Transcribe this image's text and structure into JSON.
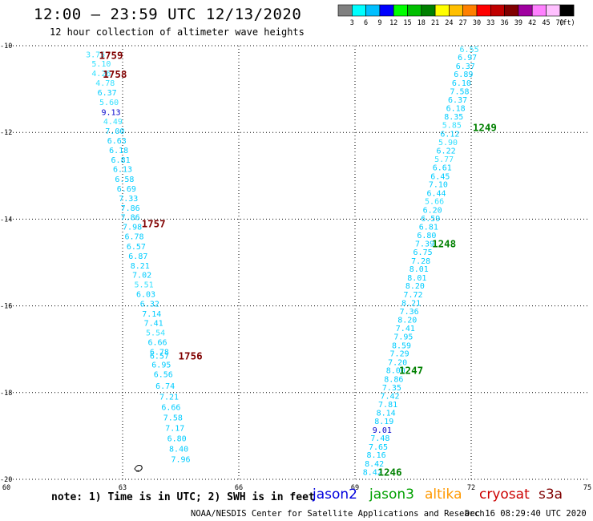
{
  "header": {
    "title": "12:00 – 23:59 UTC 12/13/2020",
    "subtitle": "12 hour collection of altimeter wave heights"
  },
  "colorbar": {
    "labels": [
      "3",
      "6",
      "9",
      "12",
      "15",
      "18",
      "21",
      "24",
      "27",
      "30",
      "33",
      "36",
      "39",
      "42",
      "45",
      "70",
      "(ft)"
    ],
    "colors": [
      "#808080",
      "#00ffff",
      "#00bfff",
      "#0000ff",
      "#00ff00",
      "#00bf00",
      "#008000",
      "#ffff00",
      "#ffbf00",
      "#ff8000",
      "#ff0000",
      "#c00000",
      "#800000",
      "#a000a0",
      "#ff80ff",
      "#ffc0ff",
      "#000000"
    ]
  },
  "footer": {
    "note": "note:  1) Time is in UTC;  2) SWH is in feet",
    "source": "NOAA/NESDIS Center for Satellite Applications and Research",
    "timestamp": "Dec 16 08:29:40 UTC 2020"
  },
  "missions": [
    {
      "name": "jason2",
      "color": "#0000dd"
    },
    {
      "name": "jason3",
      "color": "#00a000"
    },
    {
      "name": "altika",
      "color": "#ff9900"
    },
    {
      "name": "cryosat",
      "color": "#cc0000"
    },
    {
      "name": "s3a",
      "color": "#800000"
    }
  ],
  "chart_data": {
    "type": "scatter",
    "title": "12:00 – 23:59 UTC 12/13/2020",
    "xlim": [
      60,
      75
    ],
    "ylim": [
      -20,
      -10
    ],
    "xticks": [
      60,
      63,
      66,
      69,
      72,
      75
    ],
    "yticks": [
      -10,
      -12,
      -14,
      -16,
      -18,
      -20
    ],
    "grid": true,
    "color_cyan": "#00ccff",
    "color_light": "#33e0ff",
    "color_blue": "#0000cc",
    "series": [
      {
        "name": "s3a",
        "color": "#800000",
        "points": [
          {
            "x": 62.3,
            "y": -10.2,
            "v": "3.75",
            "c": "light"
          },
          {
            "x": 62.45,
            "y": -10.42,
            "v": "5.10",
            "c": "light"
          },
          {
            "x": 62.45,
            "y": -10.64,
            "v": "4.26",
            "c": "light"
          },
          {
            "x": 62.55,
            "y": -10.86,
            "v": "4.78",
            "c": "light"
          },
          {
            "x": 62.6,
            "y": -11.08,
            "v": "6.37",
            "c": "cyan"
          },
          {
            "x": 62.65,
            "y": -11.3,
            "v": "5.60",
            "c": "light"
          },
          {
            "x": 62.7,
            "y": -11.53,
            "v": "9.13",
            "c": "blue"
          },
          {
            "x": 62.75,
            "y": -11.75,
            "v": "4.49",
            "c": "light"
          },
          {
            "x": 62.8,
            "y": -11.97,
            "v": "7.00",
            "c": "cyan"
          },
          {
            "x": 62.85,
            "y": -12.19,
            "v": "6.63",
            "c": "cyan"
          },
          {
            "x": 62.9,
            "y": -12.41,
            "v": "6.18",
            "c": "cyan"
          },
          {
            "x": 62.95,
            "y": -12.63,
            "v": "6.81",
            "c": "cyan"
          },
          {
            "x": 63.0,
            "y": -12.85,
            "v": "6.13",
            "c": "cyan"
          },
          {
            "x": 63.05,
            "y": -13.08,
            "v": "6.58",
            "c": "cyan"
          },
          {
            "x": 63.1,
            "y": -13.3,
            "v": "6.69",
            "c": "cyan"
          },
          {
            "x": 63.15,
            "y": -13.52,
            "v": "7.33",
            "c": "cyan"
          },
          {
            "x": 63.2,
            "y": -13.74,
            "v": "7.86",
            "c": "cyan"
          },
          {
            "x": 63.2,
            "y": -13.96,
            "v": "7.86",
            "c": "cyan"
          },
          {
            "x": 63.25,
            "y": -14.18,
            "v": "7.98",
            "c": "cyan"
          },
          {
            "x": 63.3,
            "y": -14.4,
            "v": "6.78",
            "c": "cyan"
          },
          {
            "x": 63.35,
            "y": -14.63,
            "v": "6.57",
            "c": "cyan"
          },
          {
            "x": 63.4,
            "y": -14.85,
            "v": "6.87",
            "c": "cyan"
          },
          {
            "x": 63.45,
            "y": -15.07,
            "v": "8.21",
            "c": "cyan"
          },
          {
            "x": 63.5,
            "y": -15.29,
            "v": "7.02",
            "c": "cyan"
          },
          {
            "x": 63.55,
            "y": -15.51,
            "v": "5.51",
            "c": "light"
          },
          {
            "x": 63.6,
            "y": -15.73,
            "v": "6.03",
            "c": "cyan"
          },
          {
            "x": 63.7,
            "y": -15.95,
            "v": "6.32",
            "c": "cyan"
          },
          {
            "x": 63.75,
            "y": -16.18,
            "v": "7.14",
            "c": "cyan"
          },
          {
            "x": 63.8,
            "y": -16.4,
            "v": "7.41",
            "c": "cyan"
          },
          {
            "x": 63.85,
            "y": -16.62,
            "v": "5.54",
            "c": "light"
          },
          {
            "x": 63.9,
            "y": -16.84,
            "v": "6.66",
            "c": "cyan"
          },
          {
            "x": 63.95,
            "y": -17.06,
            "v": "6.78",
            "c": "cyan"
          },
          {
            "x": 63.95,
            "y": -17.15,
            "v": "6.57",
            "c": "cyan"
          },
          {
            "x": 64.0,
            "y": -17.36,
            "v": "6.95",
            "c": "cyan"
          },
          {
            "x": 64.05,
            "y": -17.58,
            "v": "6.56",
            "c": "cyan"
          },
          {
            "x": 64.1,
            "y": -17.85,
            "v": "6.74",
            "c": "cyan"
          },
          {
            "x": 64.2,
            "y": -18.1,
            "v": "7.21",
            "c": "cyan"
          },
          {
            "x": 64.25,
            "y": -18.34,
            "v": "6.66",
            "c": "cyan"
          },
          {
            "x": 64.3,
            "y": -18.58,
            "v": "7.58",
            "c": "cyan"
          },
          {
            "x": 64.35,
            "y": -18.82,
            "v": "7.17",
            "c": "cyan"
          },
          {
            "x": 64.4,
            "y": -19.06,
            "v": "6.80",
            "c": "cyan"
          },
          {
            "x": 64.45,
            "y": -19.3,
            "v": "8.40",
            "c": "cyan"
          },
          {
            "x": 64.5,
            "y": -19.54,
            "v": "7.96",
            "c": "cyan"
          }
        ],
        "labels": [
          {
            "x": 62.7,
            "y": -10.22,
            "text": "1759"
          },
          {
            "x": 62.8,
            "y": -10.66,
            "text": "1758"
          },
          {
            "x": 63.8,
            "y": -14.1,
            "text": "1757"
          },
          {
            "x": 64.75,
            "y": -17.15,
            "text": "1756"
          }
        ]
      },
      {
        "name": "jason3",
        "color": "#008000",
        "points": [
          {
            "x": 71.95,
            "y": -10.08,
            "v": "6.55",
            "c": "light"
          },
          {
            "x": 71.9,
            "y": -10.27,
            "v": "6.97",
            "c": "cyan"
          },
          {
            "x": 71.85,
            "y": -10.47,
            "v": "6.37",
            "c": "cyan"
          },
          {
            "x": 71.8,
            "y": -10.66,
            "v": "6.89",
            "c": "cyan"
          },
          {
            "x": 71.75,
            "y": -10.86,
            "v": "6.10",
            "c": "cyan"
          },
          {
            "x": 71.7,
            "y": -11.05,
            "v": "7.58",
            "c": "cyan"
          },
          {
            "x": 71.65,
            "y": -11.25,
            "v": "6.37",
            "c": "cyan"
          },
          {
            "x": 71.6,
            "y": -11.44,
            "v": "6.18",
            "c": "cyan"
          },
          {
            "x": 71.55,
            "y": -11.64,
            "v": "8.35",
            "c": "cyan"
          },
          {
            "x": 71.5,
            "y": -11.83,
            "v": "5.85",
            "c": "light"
          },
          {
            "x": 71.45,
            "y": -12.03,
            "v": "6.12",
            "c": "cyan"
          },
          {
            "x": 71.4,
            "y": -12.23,
            "v": "5.90",
            "c": "light"
          },
          {
            "x": 71.35,
            "y": -12.42,
            "v": "6.22",
            "c": "cyan"
          },
          {
            "x": 71.3,
            "y": -12.62,
            "v": "5.77",
            "c": "light"
          },
          {
            "x": 71.25,
            "y": -12.81,
            "v": "6.61",
            "c": "cyan"
          },
          {
            "x": 71.2,
            "y": -13.01,
            "v": "6.45",
            "c": "cyan"
          },
          {
            "x": 71.15,
            "y": -13.2,
            "v": "7.10",
            "c": "cyan"
          },
          {
            "x": 71.1,
            "y": -13.4,
            "v": "6.44",
            "c": "cyan"
          },
          {
            "x": 71.05,
            "y": -13.59,
            "v": "5.66",
            "c": "light"
          },
          {
            "x": 71.0,
            "y": -13.79,
            "v": "6.20",
            "c": "cyan"
          },
          {
            "x": 70.95,
            "y": -13.98,
            "v": "6.59",
            "c": "cyan"
          },
          {
            "x": 70.9,
            "y": -14.18,
            "v": "6.81",
            "c": "cyan"
          },
          {
            "x": 70.85,
            "y": -14.37,
            "v": "6.80",
            "c": "cyan"
          },
          {
            "x": 70.8,
            "y": -14.57,
            "v": "7.39",
            "c": "cyan"
          },
          {
            "x": 70.75,
            "y": -14.76,
            "v": "6.75",
            "c": "cyan"
          },
          {
            "x": 70.7,
            "y": -14.96,
            "v": "7.28",
            "c": "cyan"
          },
          {
            "x": 70.65,
            "y": -15.15,
            "v": "8.01",
            "c": "cyan"
          },
          {
            "x": 70.6,
            "y": -15.35,
            "v": "8.01",
            "c": "cyan"
          },
          {
            "x": 70.55,
            "y": -15.54,
            "v": "8.20",
            "c": "cyan"
          },
          {
            "x": 70.5,
            "y": -15.74,
            "v": "7.72",
            "c": "cyan"
          },
          {
            "x": 70.45,
            "y": -15.93,
            "v": "8.21",
            "c": "cyan"
          },
          {
            "x": 70.4,
            "y": -16.13,
            "v": "7.36",
            "c": "cyan"
          },
          {
            "x": 70.35,
            "y": -16.32,
            "v": "8.20",
            "c": "cyan"
          },
          {
            "x": 70.3,
            "y": -16.52,
            "v": "7.41",
            "c": "cyan"
          },
          {
            "x": 70.25,
            "y": -16.71,
            "v": "7.95",
            "c": "cyan"
          },
          {
            "x": 70.2,
            "y": -16.91,
            "v": "8.59",
            "c": "cyan"
          },
          {
            "x": 70.15,
            "y": -17.1,
            "v": "7.29",
            "c": "cyan"
          },
          {
            "x": 70.1,
            "y": -17.3,
            "v": "7.20",
            "c": "cyan"
          },
          {
            "x": 70.05,
            "y": -17.49,
            "v": "8.00",
            "c": "cyan"
          },
          {
            "x": 70.0,
            "y": -17.69,
            "v": "8.86",
            "c": "cyan"
          },
          {
            "x": 69.95,
            "y": -17.88,
            "v": "7.35",
            "c": "cyan"
          },
          {
            "x": 69.9,
            "y": -18.08,
            "v": "7.42",
            "c": "cyan"
          },
          {
            "x": 69.85,
            "y": -18.27,
            "v": "7.81",
            "c": "cyan"
          },
          {
            "x": 69.8,
            "y": -18.47,
            "v": "8.14",
            "c": "cyan"
          },
          {
            "x": 69.75,
            "y": -18.66,
            "v": "8.19",
            "c": "cyan"
          },
          {
            "x": 69.7,
            "y": -18.86,
            "v": "9.01",
            "c": "blue"
          },
          {
            "x": 69.65,
            "y": -19.05,
            "v": "7.48",
            "c": "cyan"
          },
          {
            "x": 69.6,
            "y": -19.25,
            "v": "7.65",
            "c": "cyan"
          },
          {
            "x": 69.55,
            "y": -19.44,
            "v": "8.16",
            "c": "cyan"
          },
          {
            "x": 69.5,
            "y": -19.64,
            "v": "8.42",
            "c": "cyan"
          },
          {
            "x": 69.45,
            "y": -19.83,
            "v": "8.42",
            "c": "cyan"
          }
        ],
        "labels": [
          {
            "x": 72.35,
            "y": -11.89,
            "text": "1249"
          },
          {
            "x": 71.3,
            "y": -14.57,
            "text": "1248"
          },
          {
            "x": 70.45,
            "y": -17.49,
            "text": "1247"
          },
          {
            "x": 69.9,
            "y": -19.83,
            "text": "1246"
          }
        ]
      }
    ]
  }
}
